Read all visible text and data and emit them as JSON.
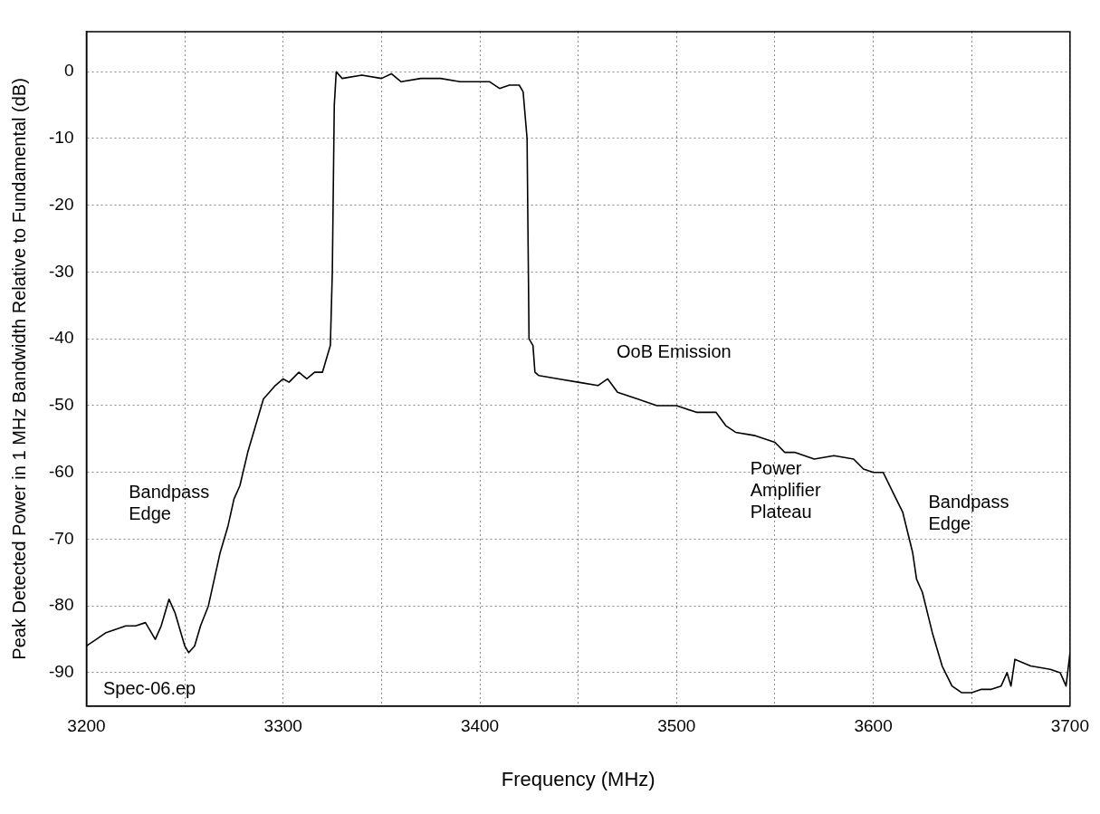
{
  "chart_data": {
    "type": "line",
    "xlabel": "Frequency (MHz)",
    "ylabel": "Peak Detected Power in 1 MHz Bandwidth Relative to Fundamental (dB)",
    "x": [
      3200,
      3205,
      3210,
      3215,
      3220,
      3225,
      3230,
      3235,
      3238,
      3242,
      3245,
      3248,
      3250,
      3252,
      3255,
      3258,
      3262,
      3265,
      3268,
      3272,
      3275,
      3278,
      3282,
      3286,
      3290,
      3293,
      3296,
      3300,
      3303,
      3308,
      3312,
      3316,
      3320,
      3322,
      3324,
      3325,
      3326,
      3327,
      3330,
      3340,
      3350,
      3355,
      3360,
      3370,
      3380,
      3390,
      3400,
      3405,
      3410,
      3415,
      3420,
      3422,
      3424,
      3425,
      3427,
      3428,
      3430,
      3440,
      3450,
      3460,
      3465,
      3470,
      3480,
      3490,
      3500,
      3510,
      3520,
      3525,
      3530,
      3540,
      3550,
      3555,
      3560,
      3570,
      3580,
      3590,
      3595,
      3600,
      3605,
      3610,
      3615,
      3620,
      3622,
      3625,
      3630,
      3635,
      3640,
      3645,
      3650,
      3655,
      3660,
      3665,
      3668,
      3670,
      3672,
      3680,
      3690,
      3695,
      3698,
      3700
    ],
    "series": [
      {
        "color": "#000000",
        "values": [
          -86,
          -85,
          -84,
          -83.5,
          -83,
          -83,
          -82.5,
          -85,
          -83,
          -79,
          -81,
          -84,
          -86,
          -87,
          -86,
          -83,
          -80,
          -76,
          -72,
          -68,
          -64,
          -62,
          -57,
          -53,
          -49,
          -48,
          -47,
          -46,
          -46.5,
          -45,
          -46,
          -45,
          -45,
          -43,
          -41,
          -30,
          -5,
          0,
          -1,
          -0.5,
          -1,
          -0.3,
          -1.5,
          -1,
          -1,
          -1.5,
          -1.5,
          -1.5,
          -2.5,
          -2,
          -2,
          -3,
          -10,
          -40,
          -41,
          -45,
          -45.5,
          -46,
          -46.5,
          -47,
          -46,
          -48,
          -49,
          -50,
          -50,
          -51,
          -51,
          -53,
          -54,
          -54.5,
          -55.5,
          -57,
          -57,
          -58,
          -57.5,
          -58,
          -59.5,
          -60,
          -60,
          -63,
          -66,
          -72,
          -76,
          -78,
          -84,
          -89,
          -92,
          -93,
          -93,
          -92.5,
          -92.5,
          -92,
          -90,
          -92,
          -88,
          -89,
          -89.5,
          -90,
          -92,
          -87
        ]
      }
    ],
    "xlim": [
      3200,
      3700
    ],
    "xticks": [
      3200,
      {
        "value": 3250,
        "label": null
      },
      3300,
      {
        "value": 3350,
        "label": null
      },
      3400,
      {
        "value": 3450,
        "label": null
      },
      3500,
      {
        "value": 3550,
        "label": null
      },
      3600,
      {
        "value": 3650,
        "label": null
      },
      3700
    ],
    "ylim": [
      -95,
      6
    ],
    "yticks": [
      -90,
      -80,
      -70,
      -60,
      -50,
      -40,
      -30,
      -20,
      -10,
      0
    ],
    "grid": true,
    "legend": false,
    "marker": "none",
    "line_style": "solid",
    "annotations": [
      "Bandpass\nEdge",
      "OoB Emission",
      "Power\nAmplifier\nPlateau",
      "Bandpass\nEdge",
      "Spec-06.ep"
    ]
  }
}
